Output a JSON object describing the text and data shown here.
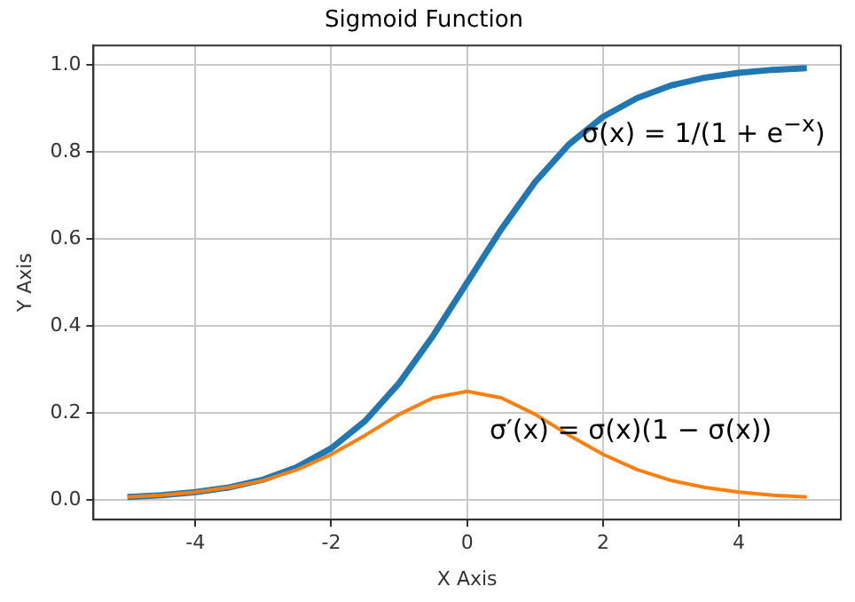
{
  "chart_data": {
    "type": "line",
    "title": "Sigmoid Function",
    "xlabel": "X Axis",
    "ylabel": "Y Axis",
    "x": [
      -5,
      -4.5,
      -4,
      -3.5,
      -3,
      -2.5,
      -2,
      -1.5,
      -1,
      -0.5,
      0,
      0.5,
      1,
      1.5,
      2,
      2.5,
      3,
      3.5,
      4,
      4.5,
      5
    ],
    "series": [
      {
        "color": "#1f77b4",
        "values": [
          0.007,
          0.011,
          0.018,
          0.029,
          0.047,
          0.076,
          0.119,
          0.182,
          0.269,
          0.378,
          0.5,
          0.622,
          0.731,
          0.818,
          0.881,
          0.924,
          0.953,
          0.971,
          0.982,
          0.989,
          0.993
        ]
      },
      {
        "color": "#ff7f0e",
        "values": [
          0.007,
          0.011,
          0.018,
          0.029,
          0.045,
          0.07,
          0.105,
          0.149,
          0.197,
          0.235,
          0.25,
          0.235,
          0.197,
          0.149,
          0.105,
          0.07,
          0.045,
          0.029,
          0.018,
          0.011,
          0.007
        ]
      }
    ],
    "xlim": [
      -5.5,
      5.5
    ],
    "xticks": [
      -4,
      -2,
      0,
      2,
      4
    ],
    "ylim": [
      -0.045,
      1.045
    ],
    "yticks": [
      {
        "value": 0,
        "label": "0.0"
      },
      0.2,
      0.4,
      0.6,
      0.8,
      {
        "value": 1,
        "label": "1.0"
      }
    ],
    "grid": true,
    "marker": "none",
    "line_style": "solid",
    "annotations": [
      "σ(x) = 1/(1 + e$^{−x}$)",
      "σ′(x) = σ(x)(1 − σ(x))"
    ]
  }
}
